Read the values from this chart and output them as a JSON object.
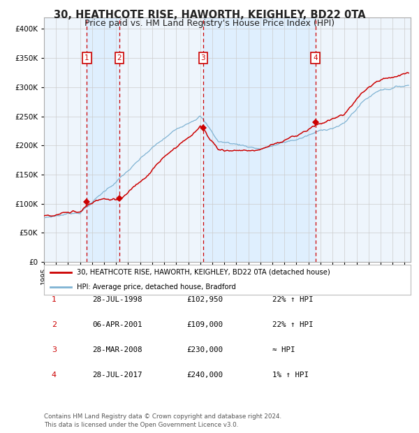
{
  "title1": "30, HEATHCOTE RISE, HAWORTH, KEIGHLEY, BD22 0TA",
  "title2": "Price paid vs. HM Land Registry's House Price Index (HPI)",
  "ylim": [
    0,
    420000
  ],
  "yticks": [
    0,
    50000,
    100000,
    150000,
    200000,
    250000,
    300000,
    350000,
    400000
  ],
  "ytick_labels": [
    "£0",
    "£50K",
    "£100K",
    "£150K",
    "£200K",
    "£250K",
    "£300K",
    "£350K",
    "£400K"
  ],
  "xlim_start": 1995.0,
  "xlim_end": 2025.5,
  "sale_dates": [
    1998.57,
    2001.26,
    2008.24,
    2017.57
  ],
  "sale_prices": [
    102950,
    109000,
    230000,
    240000
  ],
  "sale_labels": [
    "1",
    "2",
    "3",
    "4"
  ],
  "red_line_color": "#cc0000",
  "blue_line_color": "#7fb3d3",
  "shade_color": "#ddeeff",
  "marker_color": "#cc0000",
  "dashed_color": "#cc0000",
  "grid_color": "#cccccc",
  "bg_color": "#eef5fc",
  "legend1": "30, HEATHCOTE RISE, HAWORTH, KEIGHLEY, BD22 0TA (detached house)",
  "legend2": "HPI: Average price, detached house, Bradford",
  "table_rows": [
    [
      "1",
      "28-JUL-1998",
      "£102,950",
      "22% ↑ HPI"
    ],
    [
      "2",
      "06-APR-2001",
      "£109,000",
      "22% ↑ HPI"
    ],
    [
      "3",
      "28-MAR-2008",
      "£230,000",
      "≈ HPI"
    ],
    [
      "4",
      "28-JUL-2017",
      "£240,000",
      "1% ↑ HPI"
    ]
  ],
  "footer": "Contains HM Land Registry data © Crown copyright and database right 2024.\nThis data is licensed under the Open Government Licence v3.0.",
  "title_fontsize": 10.5,
  "subtitle_fontsize": 9.0
}
